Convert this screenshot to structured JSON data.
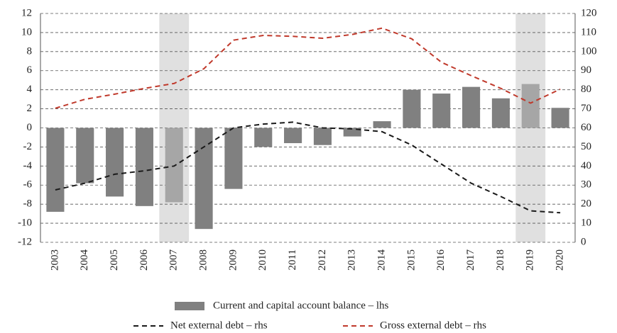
{
  "chart_data": {
    "type": "bar_line",
    "categories": [
      "2003",
      "2004",
      "2005",
      "2006",
      "2007",
      "2008",
      "2009",
      "2010",
      "2011",
      "2012",
      "2013",
      "2014",
      "2015",
      "2016",
      "2017",
      "2018",
      "2019",
      "2020"
    ],
    "shaded_categories": [
      "2007",
      "2019"
    ],
    "series": [
      {
        "name": "Current and capital account balance – lhs",
        "color": "#808080",
        "axis": "y",
        "values": [
          -8.8,
          -5.8,
          -7.2,
          -8.2,
          -7.8,
          -10.6,
          -6.4,
          -2.0,
          -1.6,
          -1.8,
          -0.9,
          0.7,
          4.0,
          3.6,
          4.3,
          3.1,
          4.6,
          2.1
        ]
      },
      {
        "name": "Net external debt – rhs",
        "color": "#1a1a1a",
        "axis": "y2",
        "values": [
          27.5,
          31,
          35.7,
          37.5,
          40,
          50,
          60,
          62,
          63,
          60,
          59.5,
          58,
          51,
          41,
          31,
          24,
          16.5,
          15.5
        ]
      },
      {
        "name": "Gross external debt – rhs",
        "color": "#c0392b",
        "axis": "y2",
        "values": [
          70.3,
          75,
          77.7,
          80.7,
          83.3,
          91,
          106,
          108.5,
          108,
          107,
          109,
          112.3,
          106.7,
          94.4,
          87.4,
          80.7,
          73,
          80.3
        ]
      }
    ],
    "ylim": [
      -12,
      12
    ],
    "yticks": [
      -12,
      -10,
      -8,
      -6,
      -4,
      -2,
      0,
      2,
      4,
      6,
      8,
      10,
      12
    ],
    "y2lim": [
      0,
      120
    ],
    "y2ticks": [
      0,
      10,
      20,
      30,
      40,
      50,
      60,
      70,
      80,
      90,
      100,
      110,
      120
    ],
    "grid": true
  }
}
